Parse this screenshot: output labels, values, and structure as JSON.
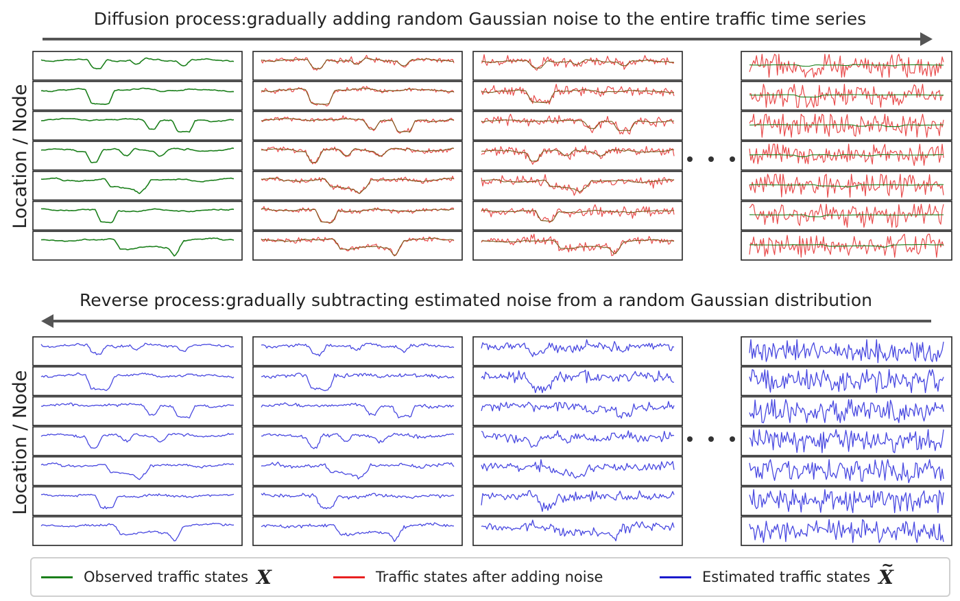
{
  "top_title": "Diffusion process:gradually adding random Gaussian noise to the entire traffic time series",
  "bottom_title": "Reverse process:gradually subtracting estimated noise from a random Gaussian distribution",
  "y_label": "Location / Node",
  "ellipsis_icon": "three-dots",
  "colors": {
    "observed": "#1a7f1a",
    "noisy": "#e84a4a",
    "estimated": "#4747e0",
    "arrow": "#555555"
  },
  "legend": {
    "observed": {
      "label": "Observed traffic states",
      "symbol": "X"
    },
    "noisy": {
      "label": "Traffic states after adding noise"
    },
    "estimated": {
      "label": "Estimated traffic states",
      "symbol": "X"
    }
  }
}
